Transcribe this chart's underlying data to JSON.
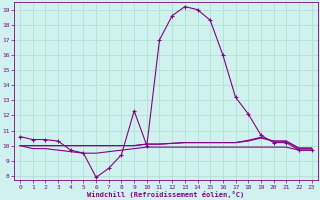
{
  "title": "",
  "xlabel": "Windchill (Refroidissement éolien,°C)",
  "background_color": "#cff2ee",
  "grid_color": "#aaddcc",
  "line_color": "#880088",
  "xlim": [
    -0.5,
    23.5
  ],
  "ylim": [
    7.7,
    19.5
  ],
  "yticks": [
    8,
    9,
    10,
    11,
    12,
    13,
    14,
    15,
    16,
    17,
    18,
    19
  ],
  "xticks": [
    0,
    1,
    2,
    3,
    4,
    5,
    6,
    7,
    8,
    9,
    10,
    11,
    12,
    13,
    14,
    15,
    16,
    17,
    18,
    19,
    20,
    21,
    22,
    23
  ],
  "line1_x": [
    0,
    1,
    2,
    3,
    4,
    5,
    6,
    7,
    8,
    9,
    10,
    11,
    12,
    13,
    14,
    15,
    16,
    17,
    18,
    19,
    20,
    21,
    22,
    23
  ],
  "line1_y": [
    10.6,
    10.4,
    10.4,
    10.3,
    9.7,
    9.5,
    7.9,
    8.5,
    9.4,
    12.3,
    10.0,
    17.0,
    18.6,
    19.2,
    19.0,
    18.3,
    16.0,
    13.2,
    12.1,
    10.7,
    10.2,
    10.2,
    9.7,
    9.7
  ],
  "line2_x": [
    0,
    1,
    2,
    3,
    4,
    5,
    6,
    7,
    8,
    9,
    10,
    11,
    12,
    13,
    14,
    15,
    16,
    17,
    18,
    19,
    20,
    21,
    22,
    23
  ],
  "line2_y": [
    10.0,
    9.8,
    9.8,
    9.7,
    9.6,
    9.5,
    9.5,
    9.6,
    9.7,
    9.8,
    9.9,
    9.9,
    9.9,
    9.9,
    9.9,
    9.9,
    9.9,
    9.9,
    9.9,
    9.9,
    9.9,
    9.9,
    9.7,
    9.7
  ],
  "line3_x": [
    0,
    9,
    10,
    11,
    12,
    13,
    14,
    15,
    16,
    17,
    18,
    19,
    20,
    21,
    22,
    23
  ],
  "line3_y": [
    10.0,
    10.0,
    10.1,
    10.1,
    10.15,
    10.2,
    10.2,
    10.2,
    10.2,
    10.2,
    10.3,
    10.5,
    10.3,
    10.3,
    9.8,
    9.8
  ],
  "line4_x": [
    0,
    9,
    10,
    11,
    12,
    13,
    14,
    15,
    16,
    17,
    18,
    19,
    20,
    21,
    22,
    23
  ],
  "line4_y": [
    10.0,
    10.0,
    10.1,
    10.1,
    10.15,
    10.2,
    10.2,
    10.2,
    10.2,
    10.2,
    10.35,
    10.55,
    10.3,
    10.3,
    9.85,
    9.85
  ]
}
